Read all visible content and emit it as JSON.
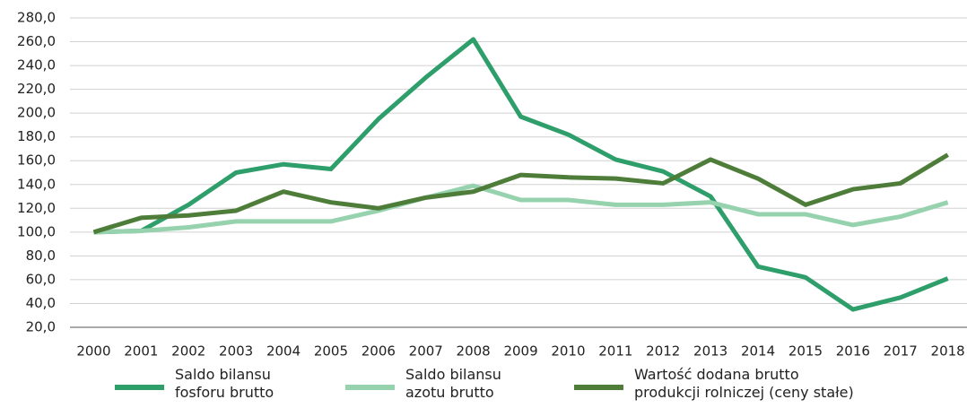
{
  "chart_data": {
    "type": "line",
    "categories": [
      "2000",
      "2001",
      "2002",
      "2003",
      "2004",
      "2005",
      "2006",
      "2007",
      "2008",
      "2009",
      "2010",
      "2011",
      "2012",
      "2013",
      "2014",
      "2015",
      "2016",
      "2017",
      "2018"
    ],
    "series": [
      {
        "name": "Saldo bilansu\nfosforu brutto",
        "color": "#2e9e6b",
        "values": [
          100,
          101,
          123,
          150,
          157,
          153,
          195,
          230,
          262,
          197,
          182,
          161,
          151,
          130,
          71,
          62,
          35,
          45,
          61
        ]
      },
      {
        "name": "Saldo bilansu\nazotu brutto",
        "color": "#96d2ad",
        "values": [
          100,
          101,
          104,
          109,
          109,
          109,
          118,
          129,
          139,
          127,
          127,
          123,
          123,
          125,
          115,
          115,
          106,
          113,
          125
        ]
      },
      {
        "name": "Wartość dodana brutto\nprodukcji rolniczej (ceny stałe)",
        "color": "#4e7d3a",
        "values": [
          100,
          112,
          114,
          118,
          134,
          125,
          120,
          129,
          134,
          148,
          146,
          145,
          141,
          161,
          145,
          123,
          136,
          141,
          165
        ]
      }
    ],
    "ylim": [
      20,
      280
    ],
    "yticks": [
      {
        "value": 20,
        "label": "20,0"
      },
      {
        "value": 40,
        "label": "40,0"
      },
      {
        "value": 60,
        "label": "60,0"
      },
      {
        "value": 80,
        "label": "80,0"
      },
      {
        "value": 100,
        "label": "100,0"
      },
      {
        "value": 120,
        "label": "120,0"
      },
      {
        "value": 140,
        "label": "140,0"
      },
      {
        "value": 160,
        "label": "160,0"
      },
      {
        "value": 180,
        "label": "180,0"
      },
      {
        "value": 200,
        "label": "200,0"
      },
      {
        "value": 220,
        "label": "220,0"
      },
      {
        "value": 240,
        "label": "240,0"
      },
      {
        "value": 260,
        "label": "260,0"
      },
      {
        "value": 280,
        "label": "280,0"
      }
    ],
    "grid": true
  }
}
